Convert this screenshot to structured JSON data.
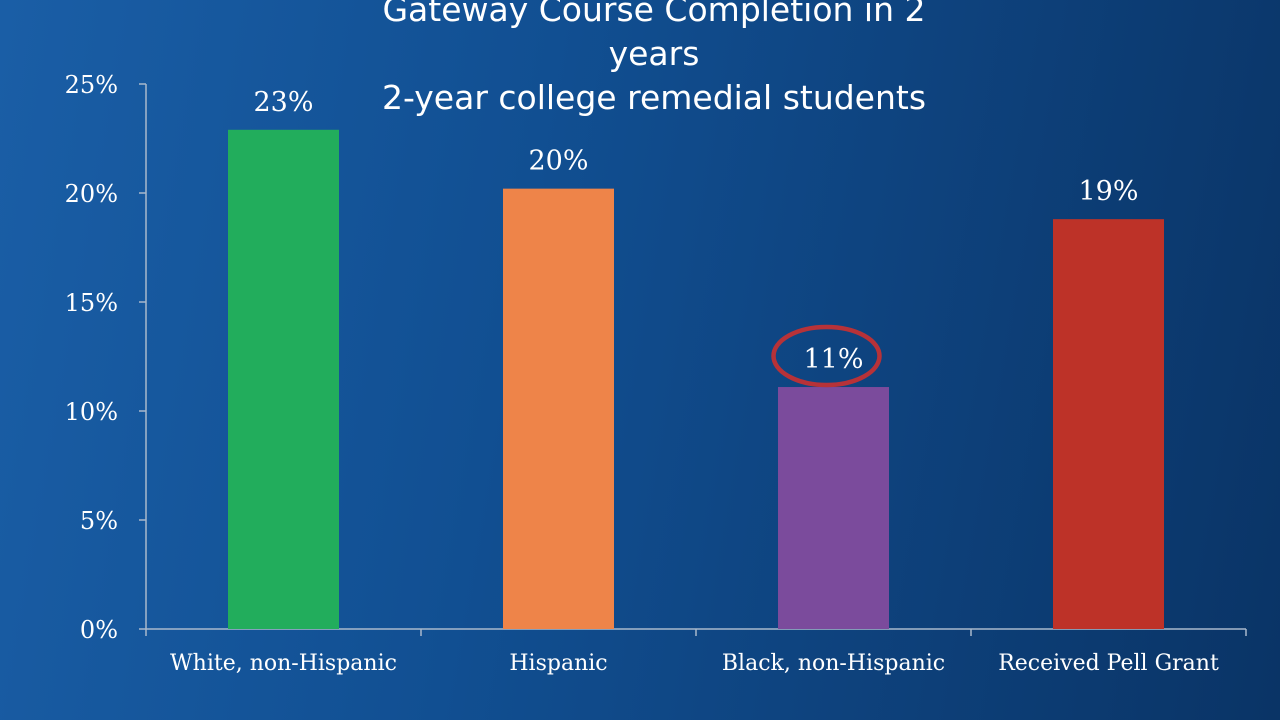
{
  "chart_data": {
    "type": "bar",
    "title_lines": [
      "Gateway Course Completion in 2",
      "years",
      "2-year college remedial students"
    ],
    "categories": [
      "White, non-Hispanic",
      "Hispanic",
      "Black, non-Hispanic",
      "Received Pell Grant"
    ],
    "values": [
      0.229,
      0.202,
      0.111,
      0.188
    ],
    "data_labels": [
      "23%",
      "20%",
      "11%",
      "19%"
    ],
    "bar_colors": [
      "#22ad5c",
      "#ee8449",
      "#7b4b9c",
      "#bd3228"
    ],
    "highlight_color": "#b73238",
    "highlighted_index": 2,
    "ylim": [
      0,
      0.25
    ],
    "yticks": [
      0,
      0.05,
      0.1,
      0.15,
      0.2,
      0.25
    ],
    "ytick_labels": [
      "0%",
      "5%",
      "10%",
      "15%",
      "20%",
      "25%"
    ],
    "xlabel": "",
    "ylabel": "",
    "grid": false,
    "legend": "none"
  }
}
